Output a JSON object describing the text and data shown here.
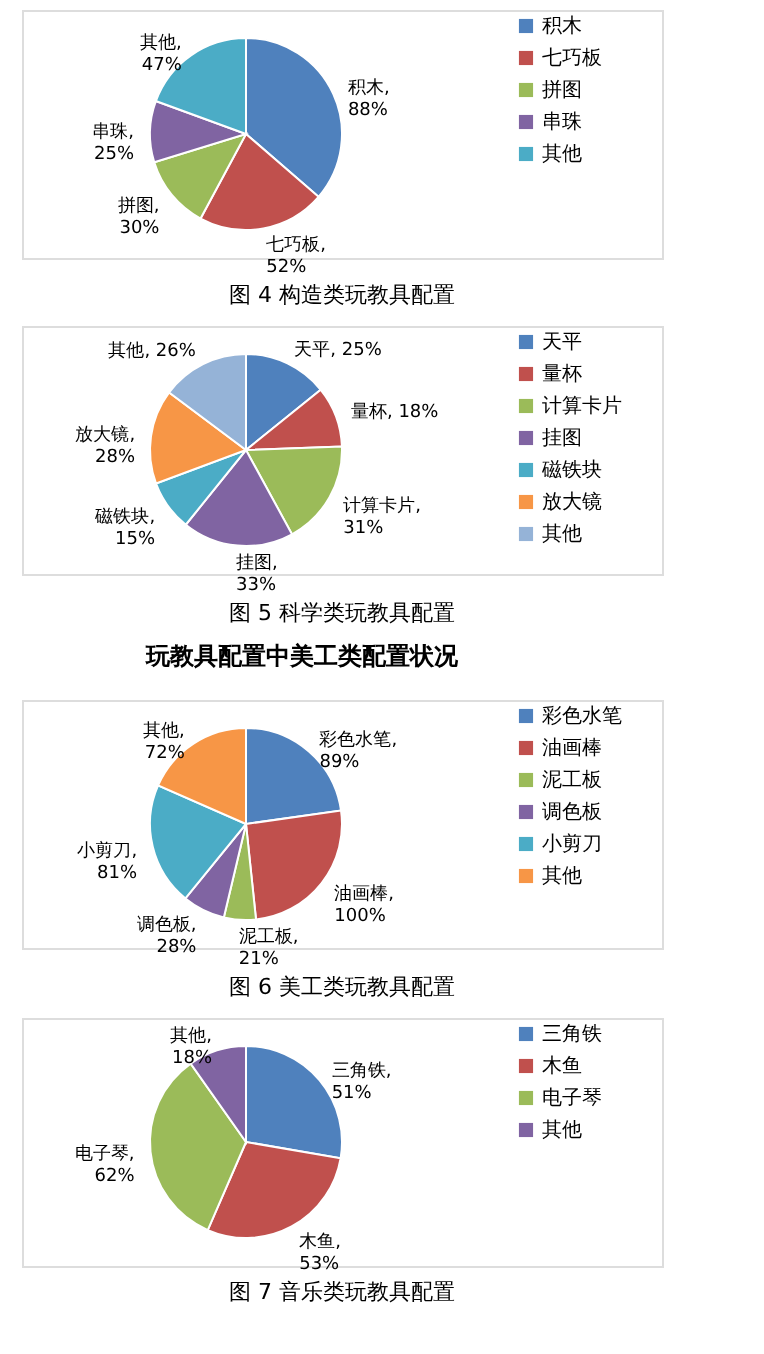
{
  "chart_data": [
    {
      "type": "pie",
      "title": "图 4 构造类玩教具配置",
      "categories": [
        "积木",
        "七巧板",
        "拼图",
        "串珠",
        "其他"
      ],
      "values": [
        88,
        52,
        30,
        25,
        47
      ],
      "colors": [
        "#4f81bd",
        "#c0504d",
        "#9bbb59",
        "#8064a2",
        "#4bacc6"
      ],
      "value_labels": [
        "积木,\n88%",
        "七巧板,\n52%",
        "拼图,\n30%",
        "串珠,\n25%",
        "其他,\n47%"
      ],
      "legend": "right"
    },
    {
      "type": "pie",
      "title": "图 5 科学类玩教具配置",
      "categories": [
        "天平",
        "量杯",
        "计算卡片",
        "挂图",
        "磁铁块",
        "放大镜",
        "其他"
      ],
      "values": [
        25,
        18,
        31,
        33,
        15,
        28,
        26
      ],
      "colors": [
        "#4f81bd",
        "#c0504d",
        "#9bbb59",
        "#8064a2",
        "#4bacc6",
        "#f79646",
        "#95b3d7"
      ],
      "value_labels": [
        "天平, 25%",
        "量杯, 18%",
        "计算卡片,\n31%",
        "挂图,\n33%",
        "磁铁块,\n15%",
        "放大镜,\n28%",
        "其他, 26%"
      ],
      "legend": "right"
    },
    {
      "type": "pie",
      "title": "图 6 美工类玩教具配置",
      "annotations": [
        "玩教具配置中美工类配置状况"
      ],
      "categories": [
        "彩色水笔",
        "油画棒",
        "泥工板",
        "调色板",
        "小剪刀",
        "其他"
      ],
      "values": [
        89,
        100,
        21,
        28,
        81,
        72
      ],
      "colors": [
        "#4f81bd",
        "#c0504d",
        "#9bbb59",
        "#8064a2",
        "#4bacc6",
        "#f79646"
      ],
      "value_labels": [
        "彩色水笔,\n89%",
        "油画棒,\n100%",
        "泥工板,\n21%",
        "调色板,\n28%",
        "小剪刀,\n81%",
        "其他,\n72%"
      ],
      "legend": "right"
    },
    {
      "type": "pie",
      "title": "图 7 音乐类玩教具配置",
      "categories": [
        "三角铁",
        "木鱼",
        "电子琴",
        "其他"
      ],
      "values": [
        51,
        53,
        62,
        18
      ],
      "colors": [
        "#4f81bd",
        "#c0504d",
        "#9bbb59",
        "#8064a2"
      ],
      "value_labels": [
        "三角铁,\n51%",
        "木鱼,\n53%",
        "电子琴,\n62%",
        "其他,\n18%"
      ],
      "legend": "right"
    }
  ]
}
